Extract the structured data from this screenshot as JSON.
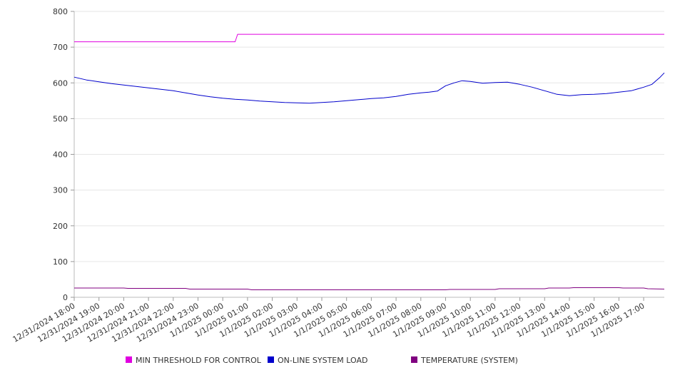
{
  "chart_data": {
    "type": "line",
    "y_ticks": [
      "0",
      "100",
      "200",
      "300",
      "400",
      "500",
      "600",
      "700",
      "800"
    ],
    "ylim": [
      0,
      800
    ],
    "x_tick_labels": [
      "12/31/2024 18:00",
      "12/31/2024 19:00",
      "12/31/2024 20:00",
      "12/31/2024 21:00",
      "12/31/2024 22:00",
      "12/31/2024 23:00",
      "1/1/2025 00:00",
      "1/1/2025 01:00",
      "1/1/2025 02:00",
      "1/1/2025 03:00",
      "1/1/2025 04:00",
      "1/1/2025 05:00",
      "1/1/2025 06:00",
      "1/1/2025 07:00",
      "1/1/2025 08:00",
      "1/1/2025 09:00",
      "1/1/2025 10:00",
      "1/1/2025 11:00",
      "1/1/2025 12:00",
      "1/1/2025 13:00",
      "1/1/2025 14:00",
      "1/1/2025 15:00",
      "1/1/2025 16:00",
      "1/1/2025 17:00"
    ],
    "x_range": [
      "12/31/2024 18:00",
      "1/1/2025 17:50"
    ],
    "grid": "horizontal",
    "legend_position": "bottom",
    "series": [
      {
        "name": "MIN THRESHOLD FOR CONTROL",
        "color": "#e000e0",
        "x": [
          "12/31/2024 18:00",
          "1/1/2025 00:30",
          "1/1/2025 00:36",
          "1/1/2025 17:50"
        ],
        "values": [
          715,
          715,
          736,
          736
        ]
      },
      {
        "name": "ON-LINE SYSTEM LOAD",
        "color": "#0000cc",
        "x": [
          "12/31/2024 18:00",
          "12/31/2024 18:30",
          "12/31/2024 19:00",
          "12/31/2024 19:30",
          "12/31/2024 20:00",
          "12/31/2024 20:30",
          "12/31/2024 21:00",
          "12/31/2024 21:30",
          "12/31/2024 22:00",
          "12/31/2024 22:30",
          "12/31/2024 23:00",
          "12/31/2024 23:30",
          "1/1/2025 00:00",
          "1/1/2025 00:30",
          "1/1/2025 01:00",
          "1/1/2025 01:30",
          "1/1/2025 02:00",
          "1/1/2025 02:30",
          "1/1/2025 03:00",
          "1/1/2025 03:30",
          "1/1/2025 04:00",
          "1/1/2025 04:30",
          "1/1/2025 05:00",
          "1/1/2025 05:30",
          "1/1/2025 06:00",
          "1/1/2025 06:30",
          "1/1/2025 07:00",
          "1/1/2025 07:30",
          "1/1/2025 08:00",
          "1/1/2025 08:20",
          "1/1/2025 08:40",
          "1/1/2025 09:00",
          "1/1/2025 09:20",
          "1/1/2025 09:40",
          "1/1/2025 10:00",
          "1/1/2025 10:30",
          "1/1/2025 11:00",
          "1/1/2025 11:30",
          "1/1/2025 12:00",
          "1/1/2025 12:30",
          "1/1/2025 13:00",
          "1/1/2025 13:30",
          "1/1/2025 14:00",
          "1/1/2025 14:30",
          "1/1/2025 15:00",
          "1/1/2025 15:30",
          "1/1/2025 16:00",
          "1/1/2025 16:30",
          "1/1/2025 17:00",
          "1/1/2025 17:20",
          "1/1/2025 17:40",
          "1/1/2025 17:50"
        ],
        "values": [
          616,
          608,
          603,
          598,
          594,
          590,
          586,
          582,
          578,
          572,
          566,
          561,
          557,
          554,
          552,
          549,
          547,
          545,
          544,
          543,
          545,
          547,
          550,
          553,
          556,
          558,
          562,
          568,
          572,
          574,
          577,
          592,
          600,
          606,
          604,
          599,
          601,
          602,
          596,
          588,
          578,
          568,
          564,
          567,
          568,
          570,
          574,
          578,
          588,
          596,
          616,
          628
        ]
      },
      {
        "name": "TEMPERATURE (SYSTEM)",
        "color": "#800080",
        "x": [
          "12/31/2024 18:00",
          "12/31/2024 20:00",
          "12/31/2024 20:10",
          "12/31/2024 22:30",
          "12/31/2024 22:40",
          "1/1/2025 01:00",
          "1/1/2025 01:10",
          "1/1/2025 09:00",
          "1/1/2025 09:10",
          "1/1/2025 11:00",
          "1/1/2025 11:10",
          "1/1/2025 13:00",
          "1/1/2025 13:10",
          "1/1/2025 14:00",
          "1/1/2025 14:10",
          "1/1/2025 16:00",
          "1/1/2025 16:10",
          "1/1/2025 17:00",
          "1/1/2025 17:10",
          "1/1/2025 17:50"
        ],
        "values": [
          26,
          26,
          25,
          25,
          23,
          23,
          21,
          21,
          22,
          22,
          24,
          24,
          26,
          26,
          27,
          27,
          26,
          26,
          24,
          23
        ]
      }
    ]
  }
}
